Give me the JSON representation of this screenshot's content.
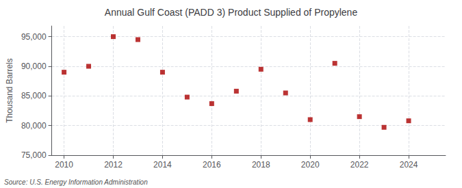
{
  "chart_data": {
    "type": "scatter",
    "title": "Annual Gulf Coast (PADD 3) Product Supplied of Propylene",
    "ylabel": "Thousand Barrels",
    "annotations": [
      "Source: U.S. Energy Information Administration"
    ],
    "x": [
      2010,
      2011,
      2012,
      2013,
      2014,
      2015,
      2016,
      2017,
      2018,
      2019,
      2020,
      2021,
      2022,
      2023,
      2024
    ],
    "values": [
      89000,
      90000,
      95000,
      94500,
      89000,
      84800,
      83700,
      85800,
      89500,
      85500,
      81000,
      90500,
      81500,
      79700,
      80800
    ],
    "color": "#aa0000",
    "marker": "square",
    "xlim": [
      2009.5,
      2025.5
    ],
    "xticks": [
      2010,
      2012,
      2014,
      2016,
      2018,
      2020,
      2022,
      2024
    ],
    "ylim": [
      75000,
      96800
    ],
    "yticks": [
      {
        "value": 75000,
        "label": "75,000"
      },
      {
        "value": 80000,
        "label": "80,000"
      },
      {
        "value": 85000,
        "label": "85,000"
      },
      {
        "value": 90000,
        "label": "90,000"
      },
      {
        "value": 95000,
        "label": "95,000"
      }
    ],
    "grid": true
  }
}
